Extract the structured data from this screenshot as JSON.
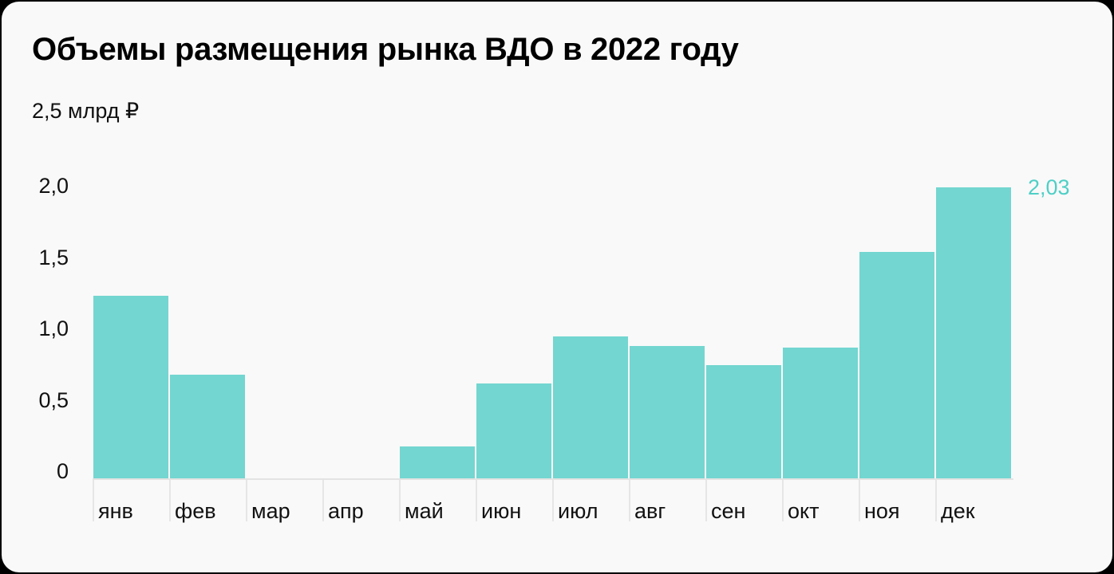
{
  "title": "Объемы размещения рынка ВДО в 2022 году",
  "unit_label": "2,5 млрд ₽",
  "colors": {
    "bar": "#73d6d0",
    "highlight_label": "#4fcfc6",
    "background": "#f9f9f9"
  },
  "y_ticks": [
    "0",
    "0,5",
    "1,0",
    "1,5",
    "2,0"
  ],
  "x_ticks": [
    "янв",
    "фев",
    "мар",
    "апр",
    "май",
    "июн",
    "июл",
    "авг",
    "сен",
    "окт",
    "ноя",
    "дек"
  ],
  "value_label": "2,03",
  "chart_data": {
    "type": "bar",
    "title": "Объемы размещения рынка ВДО в 2022 году",
    "xlabel": "",
    "ylabel": "млрд ₽",
    "unit": "млрд ₽",
    "categories": [
      "янв",
      "фев",
      "мар",
      "апр",
      "май",
      "июн",
      "июл",
      "авг",
      "сен",
      "окт",
      "ноя",
      "дек"
    ],
    "values": [
      1.27,
      0.72,
      0,
      0,
      0.22,
      0.66,
      0.99,
      0.92,
      0.79,
      0.91,
      1.58,
      2.03
    ],
    "ylim": [
      0,
      2.5
    ],
    "y_tick_labels": [
      "0",
      "0,5",
      "1,0",
      "1,5",
      "2,0",
      "2,5"
    ],
    "annotations": [
      {
        "category": "дек",
        "text": "2,03"
      }
    ],
    "grid": false,
    "legend": null
  }
}
